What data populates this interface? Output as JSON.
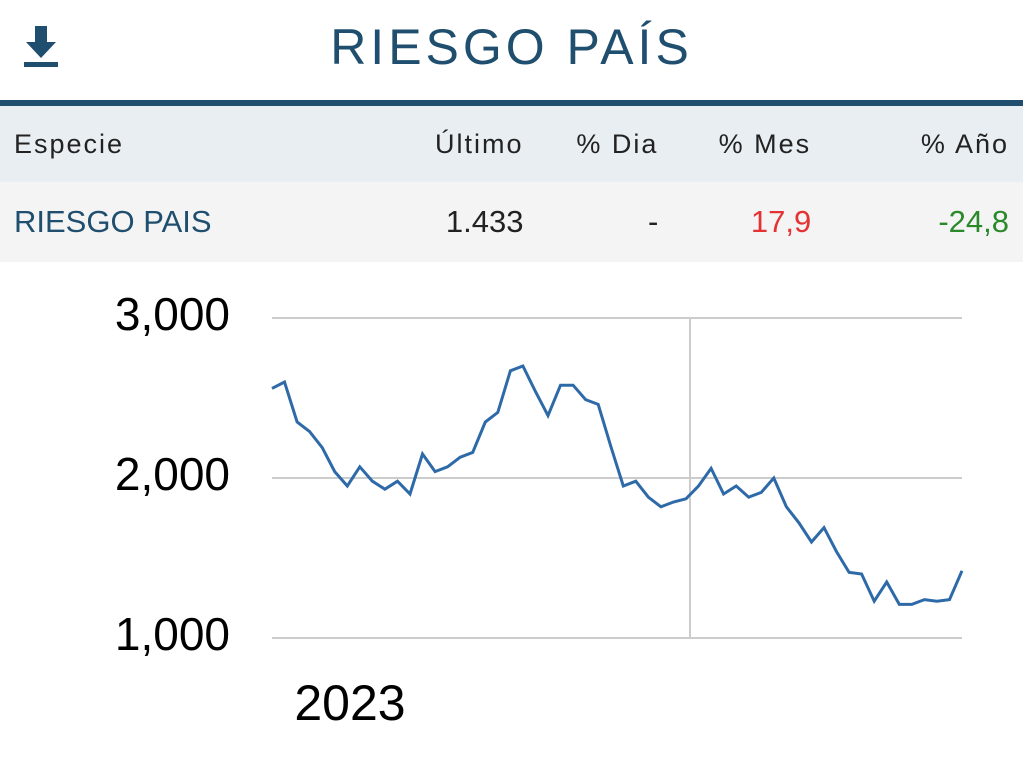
{
  "header": {
    "title": "RIESGO PAÍS"
  },
  "table": {
    "columns": [
      "Especie",
      "Último",
      "% Dia",
      "% Mes",
      "% Año"
    ],
    "rows": [
      [
        "RIESGO PAIS",
        "1.433",
        "-",
        "17,9",
        "-24,8"
      ]
    ]
  },
  "chart_data": {
    "type": "line",
    "xlabel": "2023",
    "color": "#2e6aa8",
    "values": [
      2560,
      2600,
      2350,
      2290,
      2190,
      2040,
      1950,
      2070,
      1980,
      1930,
      1980,
      1900,
      2150,
      2040,
      2070,
      2130,
      2160,
      2350,
      2410,
      2670,
      2700,
      2540,
      2390,
      2580,
      2580,
      2490,
      2460,
      2200,
      1950,
      1980,
      1880,
      1820,
      1850,
      1870,
      1950,
      2060,
      1900,
      1950,
      1880,
      1910,
      2000,
      1820,
      1720,
      1600,
      1690,
      1540,
      1410,
      1400,
      1230,
      1350,
      1210,
      1210,
      1240,
      1230,
      1240,
      1420
    ],
    "ylim": [
      1000,
      3000
    ],
    "yticks": [
      {
        "value": 1000,
        "label": "1,000"
      },
      {
        "value": 2000,
        "label": "2,000"
      },
      {
        "value": 3000,
        "label": "3,000"
      }
    ],
    "grid": true
  }
}
